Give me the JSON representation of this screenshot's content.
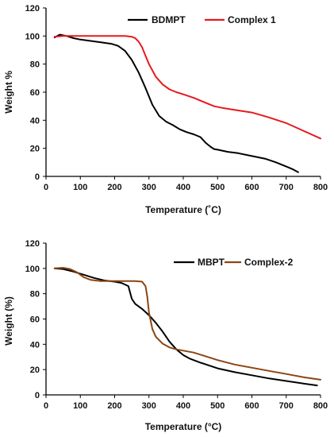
{
  "chart_data": [
    {
      "type": "line",
      "xlabel": "Temperature (˚C)",
      "ylabel": "Weight %",
      "xlim": [
        0,
        800
      ],
      "ylim": [
        0,
        120
      ],
      "xticks": [
        "0",
        "100",
        "200",
        "300",
        "400",
        "500",
        "600",
        "700",
        "800"
      ],
      "yticks": [
        "0",
        "20",
        "40",
        "60",
        "80",
        "100",
        "120"
      ],
      "grid": false,
      "legend_position": "top-right",
      "series": [
        {
          "name": "BDMPT",
          "color": "#000000",
          "x": [
            25,
            40,
            60,
            80,
            100,
            130,
            160,
            190,
            210,
            230,
            250,
            270,
            290,
            310,
            330,
            350,
            370,
            390,
            410,
            430,
            450,
            465,
            480,
            490,
            500,
            530,
            560,
            600,
            640,
            670,
            700,
            720,
            735
          ],
          "y": [
            99,
            101,
            100,
            98.5,
            97.5,
            96.5,
            95.5,
            94.5,
            93,
            89.5,
            83,
            74,
            63,
            51,
            43,
            39,
            36.5,
            33.5,
            31.5,
            30,
            28,
            24,
            21,
            19.5,
            19,
            17.5,
            16.5,
            14.5,
            12.5,
            10,
            7,
            5,
            3
          ]
        },
        {
          "name": "Complex 1",
          "color": "#e8191f",
          "x": [
            25,
            50,
            100,
            150,
            180,
            200,
            230,
            250,
            260,
            270,
            280,
            290,
            300,
            320,
            340,
            360,
            380,
            400,
            430,
            460,
            490,
            520,
            560,
            600,
            650,
            700,
            750,
            800
          ],
          "y": [
            99.5,
            100,
            100,
            100,
            100,
            100,
            100,
            99.5,
            98.5,
            96,
            92,
            86,
            80,
            71,
            65.5,
            62,
            60,
            58.5,
            56,
            53,
            50,
            48.5,
            47,
            45.5,
            42,
            38,
            32.5,
            27
          ]
        }
      ]
    },
    {
      "type": "line",
      "xlabel": "Temperature (°C)",
      "ylabel": "Weight (%)",
      "xlim": [
        0,
        800
      ],
      "ylim": [
        0,
        120
      ],
      "xticks": [
        "0",
        "100",
        "200",
        "300",
        "400",
        "500",
        "600",
        "700",
        "800"
      ],
      "yticks": [
        "0",
        "20",
        "40",
        "60",
        "80",
        "100",
        "120"
      ],
      "grid": false,
      "legend_position": "top-right",
      "series": [
        {
          "name": "MBPT",
          "color": "#000000",
          "x": [
            25,
            50,
            80,
            110,
            140,
            170,
            200,
            220,
            240,
            250,
            260,
            280,
            300,
            320,
            340,
            360,
            380,
            400,
            420,
            450,
            500,
            550,
            600,
            650,
            700,
            750,
            790
          ],
          "y": [
            100,
            99.5,
            97.5,
            95,
            92.5,
            90.5,
            89.5,
            88.5,
            86,
            76,
            72,
            68,
            63,
            57,
            50,
            42,
            36,
            31.5,
            28.5,
            25.5,
            21,
            18,
            15.5,
            13,
            11,
            9,
            7.5
          ]
        },
        {
          "name": "Complex-2",
          "color": "#8b4513",
          "x": [
            25,
            50,
            70,
            90,
            110,
            130,
            160,
            200,
            230,
            260,
            280,
            290,
            295,
            300,
            310,
            320,
            340,
            360,
            380,
            400,
            430,
            460,
            500,
            550,
            600,
            650,
            700,
            750,
            800
          ],
          "y": [
            100,
            100.5,
            99.5,
            97,
            93,
            91,
            90,
            90,
            90,
            90,
            89.5,
            86,
            78,
            65,
            52,
            46,
            40.5,
            37.5,
            36,
            35,
            33.5,
            31,
            27.5,
            24,
            21.5,
            19,
            16.5,
            14,
            12
          ]
        }
      ]
    }
  ]
}
